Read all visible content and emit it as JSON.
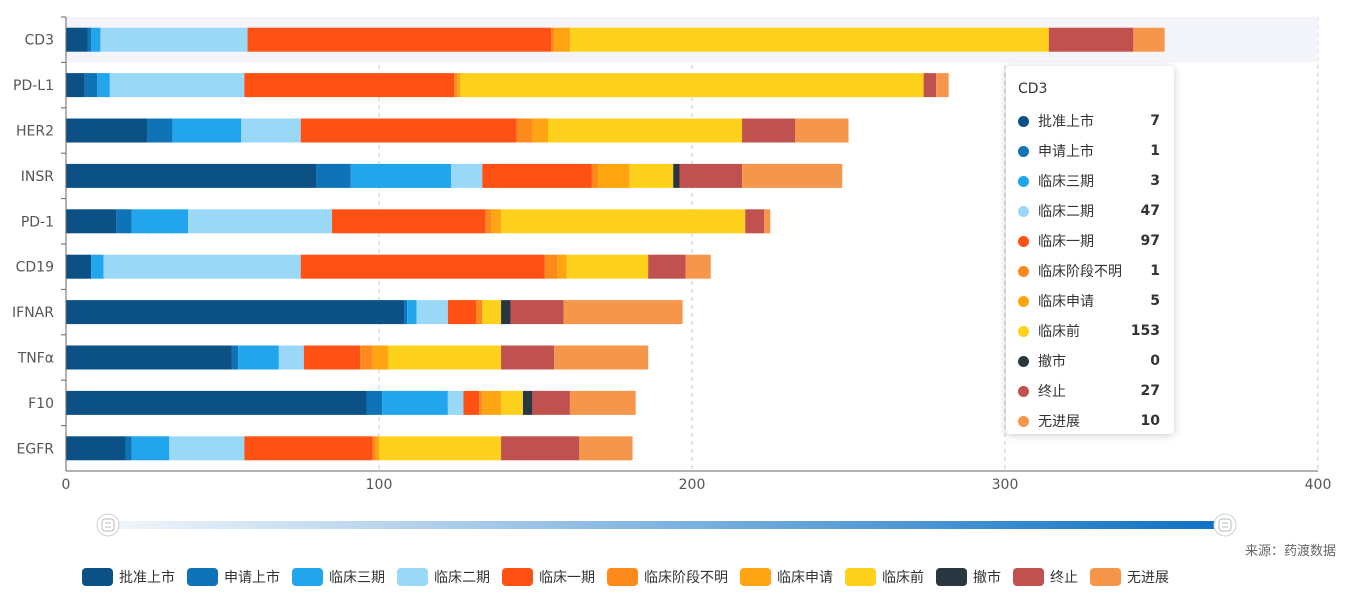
{
  "chart_data": {
    "type": "bar",
    "orientation": "horizontal",
    "stacked": true,
    "categories": [
      "CD3",
      "PD-L1",
      "HER2",
      "INSR",
      "PD-1",
      "CD19",
      "IFNAR",
      "TNFα",
      "F10",
      "EGFR"
    ],
    "xlim": [
      0,
      400
    ],
    "xticks": [
      0,
      100,
      200,
      300,
      400
    ],
    "grid": "vertical dashed",
    "highlighted_category": "CD3",
    "series": [
      {
        "name": "批准上市",
        "color": "#0b5185",
        "values": [
          7,
          6,
          26,
          80,
          16,
          8,
          108,
          53,
          96,
          19
        ]
      },
      {
        "name": "申请上市",
        "color": "#0f73b7",
        "values": [
          1,
          4,
          8,
          11,
          5,
          0,
          1,
          2,
          5,
          2
        ]
      },
      {
        "name": "临床三期",
        "color": "#21a5ed",
        "values": [
          3,
          4,
          22,
          32,
          18,
          4,
          3,
          13,
          21,
          12
        ]
      },
      {
        "name": "临床二期",
        "color": "#9ad8f8",
        "values": [
          47,
          43,
          19,
          10,
          46,
          63,
          10,
          8,
          5,
          24
        ]
      },
      {
        "name": "临床一期",
        "color": "#ff5113",
        "values": [
          97,
          67,
          69,
          35,
          49,
          78,
          9,
          18,
          5,
          41
        ]
      },
      {
        "name": "临床阶段不明",
        "color": "#ff8a1c",
        "values": [
          1,
          1,
          5,
          2,
          2,
          4,
          2,
          4,
          1,
          1
        ]
      },
      {
        "name": "临床申请",
        "color": "#ffa511",
        "values": [
          5,
          1,
          5,
          10,
          3,
          3,
          0,
          5,
          6,
          1
        ]
      },
      {
        "name": "临床前",
        "color": "#fdd11c",
        "values": [
          153,
          148,
          62,
          14,
          78,
          26,
          6,
          36,
          7,
          39
        ]
      },
      {
        "name": "撤市",
        "color": "#293840",
        "values": [
          0,
          0,
          0,
          2,
          0,
          0,
          3,
          0,
          3,
          0
        ]
      },
      {
        "name": "终止",
        "color": "#c0514f",
        "values": [
          27,
          4,
          17,
          20,
          6,
          12,
          17,
          17,
          12,
          25
        ]
      },
      {
        "name": "无进展",
        "color": "#f5964b",
        "values": [
          10,
          4,
          17,
          32,
          2,
          8,
          38,
          30,
          21,
          17
        ]
      }
    ],
    "legend_position": "bottom",
    "source": "来源：药渡数据",
    "tooltip": {
      "title": "CD3",
      "rows": [
        {
          "name": "批准上市",
          "value": "7"
        },
        {
          "name": "申请上市",
          "value": "1"
        },
        {
          "name": "临床三期",
          "value": "3"
        },
        {
          "name": "临床二期",
          "value": "47"
        },
        {
          "name": "临床一期",
          "value": "97"
        },
        {
          "name": "临床阶段不明",
          "value": "1"
        },
        {
          "name": "临床申请",
          "value": "5"
        },
        {
          "name": "临床前",
          "value": "153"
        },
        {
          "name": "撤市",
          "value": "0"
        },
        {
          "name": "终止",
          "value": "27"
        },
        {
          "name": "无进展",
          "value": "10"
        }
      ]
    },
    "datazoom": {
      "start": 0,
      "end": 100
    }
  }
}
